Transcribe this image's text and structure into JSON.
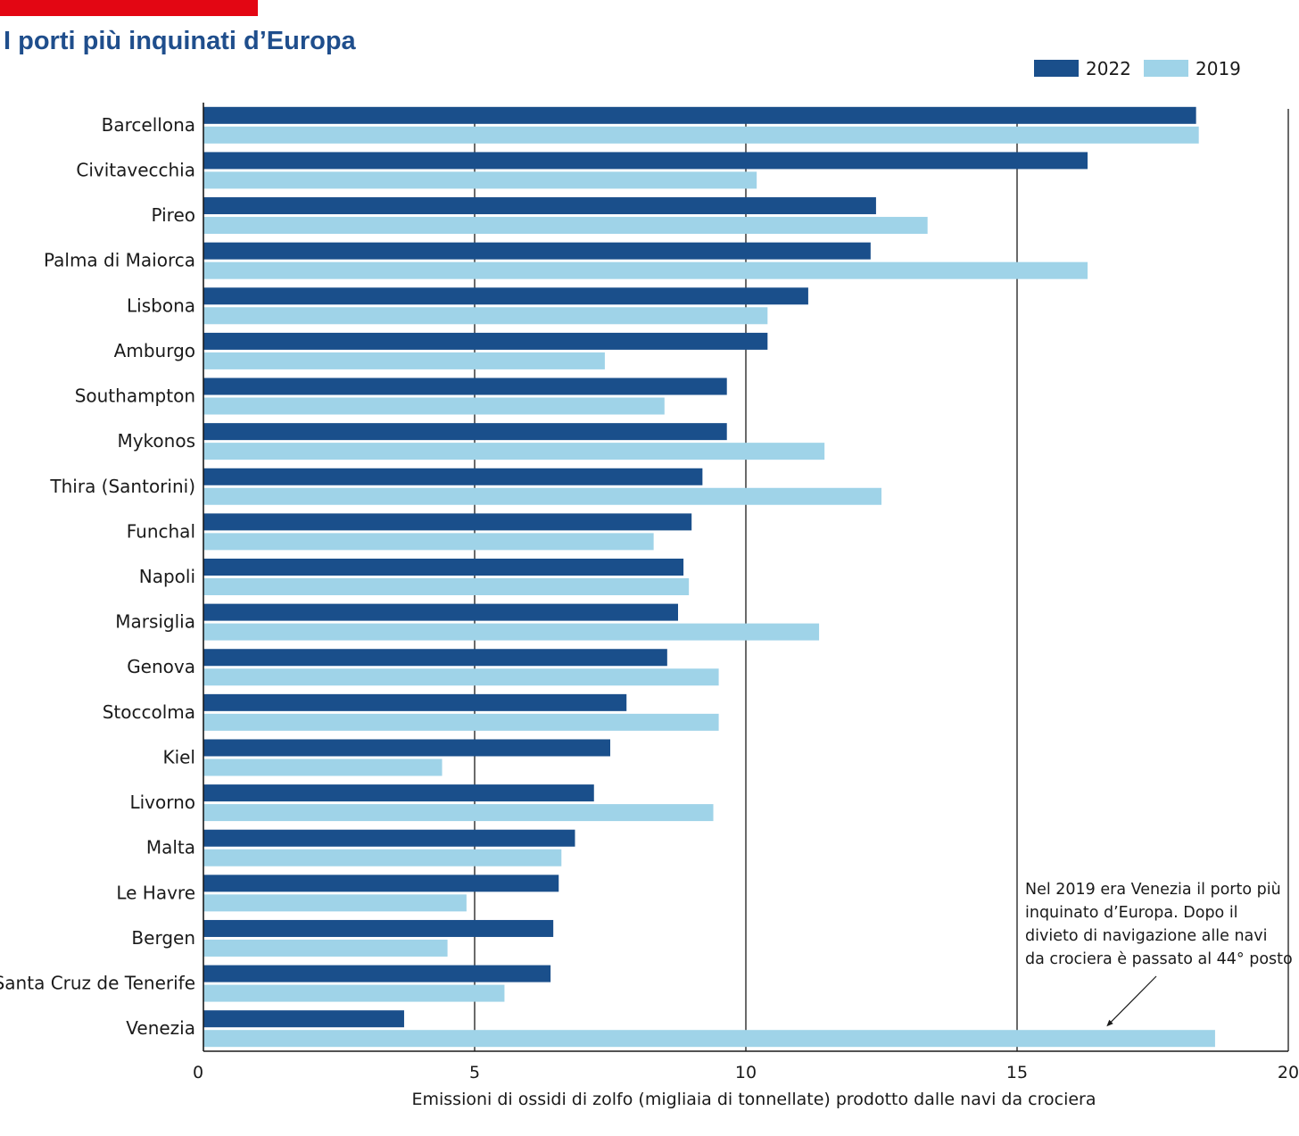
{
  "header": {
    "title": "I porti più inquinati d’Europa"
  },
  "colors": {
    "accent": "#e30613",
    "title": "#1f4e8c",
    "series_2022": "#1a4f8b",
    "series_2019": "#9fd3e8",
    "grid": "#1a1a1a"
  },
  "annotation": {
    "lines": [
      "Nel 2019 era Venezia il porto più",
      "inquinato d’Europa. Dopo il",
      "divieto di navigazione alle navi",
      "da crociera è passato al 44° posto"
    ],
    "target_category": "Venezia",
    "target_x": 16.65
  },
  "chart_data": {
    "type": "bar",
    "orientation": "horizontal",
    "title": "I porti più inquinati d’Europa",
    "xlabel": "Emissioni di ossidi di zolfo (migliaia di tonnellate) prodotto dalle navi da crociera",
    "ylabel": "",
    "xlim": [
      0,
      20
    ],
    "xticks": [
      0,
      5,
      10,
      15,
      20
    ],
    "grid": true,
    "legend": "top-right",
    "categories": [
      "Barcellona",
      "Civitavecchia",
      "Pireo",
      "Palma di Maiorca",
      "Lisbona",
      "Amburgo",
      "Southampton",
      "Mykonos",
      "Thira (Santorini)",
      "Funchal",
      "Napoli",
      "Marsiglia",
      "Genova",
      "Stoccolma",
      "Kiel",
      "Livorno",
      "Malta",
      "Le Havre",
      "Bergen",
      "Santa Cruz de Tenerife",
      "Venezia"
    ],
    "series": [
      {
        "name": "2022",
        "values": [
          18.3,
          16.3,
          12.4,
          12.3,
          11.15,
          10.4,
          9.65,
          9.65,
          9.2,
          9.0,
          8.85,
          8.75,
          8.55,
          7.8,
          7.5,
          7.2,
          6.85,
          6.55,
          6.45,
          6.4,
          3.7
        ]
      },
      {
        "name": "2019",
        "values": [
          18.35,
          10.2,
          13.35,
          16.3,
          10.4,
          7.4,
          8.5,
          11.45,
          12.5,
          8.3,
          8.95,
          11.35,
          9.5,
          9.5,
          4.4,
          9.4,
          6.6,
          4.85,
          4.5,
          5.55,
          18.65
        ]
      }
    ]
  }
}
